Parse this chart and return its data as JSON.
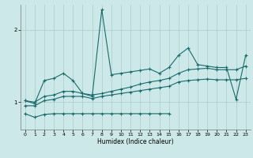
{
  "xlabel": "Humidex (Indice chaleur)",
  "bg_color": "#cce8e8",
  "line_color": "#1a6b6b",
  "grid_color": "#aacccc",
  "xlim": [
    -0.5,
    23.5
  ],
  "ylim": [
    0.62,
    2.35
  ],
  "yticks": [
    1,
    2
  ],
  "xticks": [
    0,
    1,
    2,
    3,
    4,
    5,
    6,
    7,
    8,
    9,
    10,
    11,
    12,
    13,
    14,
    15,
    16,
    17,
    18,
    19,
    20,
    21,
    22,
    23
  ],
  "x_bottom": [
    0,
    1,
    2,
    3,
    4,
    5,
    6,
    7,
    8,
    9,
    10,
    11,
    12,
    13,
    14,
    15
  ],
  "y_bottom": [
    0.84,
    0.79,
    0.83,
    0.84,
    0.84,
    0.84,
    0.84,
    0.84,
    0.84,
    0.84,
    0.84,
    0.84,
    0.84,
    0.84,
    0.84,
    0.84
  ],
  "x_lower": [
    0,
    1,
    2,
    3,
    4,
    5,
    6,
    7,
    8,
    9,
    10,
    11,
    12,
    13,
    14,
    15,
    16,
    17,
    18,
    19,
    20,
    21,
    22,
    23
  ],
  "y_lower": [
    0.95,
    0.95,
    1.02,
    1.04,
    1.08,
    1.08,
    1.08,
    1.05,
    1.08,
    1.1,
    1.12,
    1.14,
    1.16,
    1.18,
    1.2,
    1.22,
    1.28,
    1.3,
    1.31,
    1.32,
    1.31,
    1.31,
    1.31,
    1.33
  ],
  "x_upper": [
    0,
    1,
    2,
    3,
    4,
    5,
    6,
    7,
    8,
    9,
    10,
    11,
    12,
    13,
    14,
    15,
    16,
    17,
    18,
    19,
    20,
    21,
    22,
    23
  ],
  "y_upper": [
    1.02,
    1.0,
    1.08,
    1.1,
    1.15,
    1.15,
    1.12,
    1.1,
    1.12,
    1.15,
    1.18,
    1.21,
    1.25,
    1.28,
    1.3,
    1.33,
    1.4,
    1.45,
    1.46,
    1.47,
    1.45,
    1.45,
    1.45,
    1.5
  ],
  "x_spike": [
    0,
    1,
    2,
    3,
    4,
    5,
    6,
    7,
    8,
    9,
    10,
    11,
    12,
    13,
    14,
    15,
    16,
    17,
    18,
    19,
    20,
    21,
    22,
    23
  ],
  "y_spike": [
    1.02,
    0.98,
    1.3,
    1.33,
    1.4,
    1.3,
    1.12,
    1.08,
    2.28,
    1.38,
    1.4,
    1.42,
    1.44,
    1.46,
    1.4,
    1.48,
    1.65,
    1.75,
    1.52,
    1.5,
    1.48,
    1.48,
    1.04,
    1.65
  ]
}
